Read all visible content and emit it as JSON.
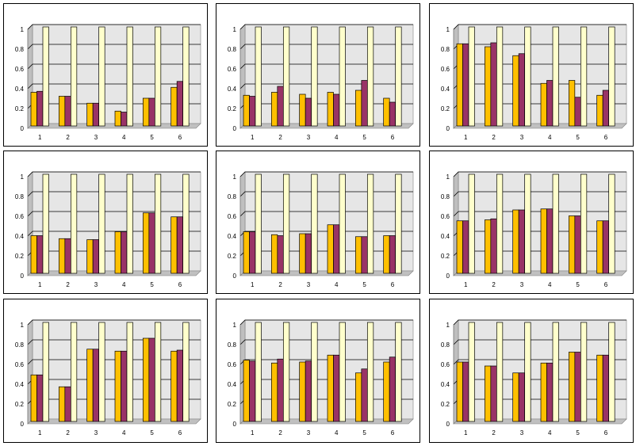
{
  "chart_data": [
    {
      "type": "bar",
      "categories": [
        "1",
        "2",
        "3",
        "4",
        "5",
        "6"
      ],
      "ylim": [
        0,
        1
      ],
      "yticks": [
        "0",
        "0.2",
        "0.4",
        "0.6",
        "0.8",
        "1"
      ],
      "grid": true,
      "x_tick_color": "#000000",
      "colors": {
        "plot_bg": "#e6e6e6",
        "series_a": "#ffc000",
        "series_b": "#993366",
        "series_c": "#ffffcc"
      },
      "series": [
        {
          "values": [
            0.34,
            0.3,
            0.23,
            0.15,
            0.28,
            0.39
          ]
        },
        {
          "values": [
            0.35,
            0.3,
            0.23,
            0.14,
            0.28,
            0.45
          ]
        },
        {
          "values": [
            1,
            1,
            1,
            1,
            1,
            1
          ]
        }
      ]
    },
    {
      "type": "bar",
      "categories": [
        "1",
        "2",
        "3",
        "4",
        "5",
        "6"
      ],
      "ylim": [
        0,
        1
      ],
      "yticks": [
        "0",
        "0.2",
        "0.4",
        "0.6",
        "0.8",
        "1"
      ],
      "grid": true,
      "x_tick_color": "#c00000",
      "colors": {
        "plot_bg": "#e6e6e6",
        "series_a": "#ffc000",
        "series_b": "#993366",
        "series_c": "#ffffcc"
      },
      "series": [
        {
          "values": [
            0.31,
            0.34,
            0.32,
            0.34,
            0.36,
            0.28
          ]
        },
        {
          "values": [
            0.3,
            0.4,
            0.28,
            0.32,
            0.46,
            0.24
          ]
        },
        {
          "values": [
            1,
            1,
            1,
            1,
            1,
            1
          ]
        }
      ]
    },
    {
      "type": "bar",
      "categories": [
        "1",
        "2",
        "3",
        "4",
        "5",
        "6"
      ],
      "ylim": [
        0,
        1
      ],
      "yticks": [
        "0",
        "0.2",
        "0.4",
        "0.6",
        "0.8",
        "1"
      ],
      "grid": true,
      "x_tick_color": "#000000",
      "colors": {
        "plot_bg": "#e6e6e6",
        "series_a": "#ffc000",
        "series_b": "#993366",
        "series_c": "#ffffcc"
      },
      "series": [
        {
          "values": [
            0.83,
            0.8,
            0.71,
            0.43,
            0.46,
            0.31
          ]
        },
        {
          "values": [
            0.83,
            0.84,
            0.73,
            0.46,
            0.29,
            0.36
          ]
        },
        {
          "values": [
            1,
            1,
            1,
            1,
            1,
            1
          ]
        }
      ]
    },
    {
      "type": "bar",
      "categories": [
        "1",
        "2",
        "3",
        "4",
        "5",
        "6"
      ],
      "ylim": [
        0,
        1
      ],
      "yticks": [
        "0",
        "0.2",
        "0.4",
        "0.6",
        "0.8",
        "1"
      ],
      "grid": true,
      "x_tick_color": "#000000",
      "colors": {
        "plot_bg": "#e6e6e6",
        "series_a": "#ffc000",
        "series_b": "#993366",
        "series_c": "#ffffcc"
      },
      "series": [
        {
          "values": [
            0.38,
            0.35,
            0.34,
            0.42,
            0.61,
            0.57
          ]
        },
        {
          "values": [
            0.38,
            0.35,
            0.34,
            0.42,
            0.61,
            0.57
          ]
        },
        {
          "values": [
            1,
            1,
            1,
            1,
            1,
            1
          ]
        }
      ]
    },
    {
      "type": "bar",
      "categories": [
        "1",
        "2",
        "3",
        "4",
        "5",
        "6"
      ],
      "ylim": [
        0,
        1
      ],
      "yticks": [
        "0",
        "0.2",
        "0.4",
        "0.6",
        "0.8",
        "1"
      ],
      "grid": true,
      "x_tick_color": "#c00000",
      "colors": {
        "plot_bg": "#e6e6e6",
        "series_a": "#ffc000",
        "series_b": "#993366",
        "series_c": "#ffffcc"
      },
      "series": [
        {
          "values": [
            0.42,
            0.39,
            0.4,
            0.49,
            0.37,
            0.38
          ]
        },
        {
          "values": [
            0.42,
            0.38,
            0.4,
            0.49,
            0.37,
            0.38
          ]
        },
        {
          "values": [
            1,
            1,
            1,
            1,
            1,
            1
          ]
        }
      ]
    },
    {
      "type": "bar",
      "categories": [
        "1",
        "2",
        "3",
        "4",
        "5",
        "6"
      ],
      "ylim": [
        0,
        1
      ],
      "yticks": [
        "0",
        "0.2",
        "0.4",
        "0.6",
        "0.8",
        "1"
      ],
      "grid": true,
      "x_tick_color": "#000000",
      "colors": {
        "plot_bg": "#e6e6e6",
        "series_a": "#ffc000",
        "series_b": "#993366",
        "series_c": "#ffffcc"
      },
      "series": [
        {
          "values": [
            0.53,
            0.54,
            0.64,
            0.65,
            0.58,
            0.53
          ]
        },
        {
          "values": [
            0.53,
            0.55,
            0.64,
            0.65,
            0.58,
            0.53
          ]
        },
        {
          "values": [
            1,
            1,
            1,
            1,
            1,
            1
          ]
        }
      ]
    },
    {
      "type": "bar",
      "categories": [
        "1",
        "2",
        "3",
        "4",
        "5",
        "6"
      ],
      "ylim": [
        0,
        1
      ],
      "yticks": [
        "0",
        "0.2",
        "0.4",
        "0.6",
        "0.8",
        "1"
      ],
      "grid": true,
      "x_tick_color": "#000000",
      "colors": {
        "plot_bg": "#e6e6e6",
        "series_a": "#ffc000",
        "series_b": "#993366",
        "series_c": "#ffffcc"
      },
      "series": [
        {
          "values": [
            0.47,
            0.35,
            0.73,
            0.71,
            0.84,
            0.71
          ]
        },
        {
          "values": [
            0.47,
            0.35,
            0.73,
            0.71,
            0.84,
            0.72
          ]
        },
        {
          "values": [
            1,
            1,
            1,
            1,
            1,
            1
          ]
        }
      ]
    },
    {
      "type": "bar",
      "categories": [
        "1",
        "2",
        "3",
        "4",
        "5",
        "6"
      ],
      "ylim": [
        0,
        1
      ],
      "yticks": [
        "0",
        "0.2",
        "0.4",
        "0.6",
        "0.8",
        "1"
      ],
      "grid": true,
      "x_tick_color": "#c00000",
      "colors": {
        "plot_bg": "#e6e6e6",
        "series_a": "#ffc000",
        "series_b": "#993366",
        "series_c": "#ffffcc"
      },
      "series": [
        {
          "values": [
            0.62,
            0.59,
            0.6,
            0.67,
            0.49,
            0.6
          ]
        },
        {
          "values": [
            0.61,
            0.63,
            0.61,
            0.67,
            0.53,
            0.65
          ]
        },
        {
          "values": [
            1,
            1,
            1,
            1,
            1,
            1
          ]
        }
      ]
    },
    {
      "type": "bar",
      "categories": [
        "1",
        "2",
        "3",
        "4",
        "5",
        "6"
      ],
      "ylim": [
        0,
        1
      ],
      "yticks": [
        "0",
        "0.2",
        "0.4",
        "0.6",
        "0.8",
        "1"
      ],
      "grid": true,
      "x_tick_color": "#000000",
      "colors": {
        "plot_bg": "#e6e6e6",
        "series_a": "#ffc000",
        "series_b": "#993366",
        "series_c": "#ffffcc"
      },
      "series": [
        {
          "values": [
            0.6,
            0.56,
            0.49,
            0.59,
            0.7,
            0.67
          ]
        },
        {
          "values": [
            0.6,
            0.56,
            0.49,
            0.59,
            0.7,
            0.67
          ]
        },
        {
          "values": [
            1,
            1,
            1,
            1,
            1,
            1
          ]
        }
      ]
    }
  ]
}
